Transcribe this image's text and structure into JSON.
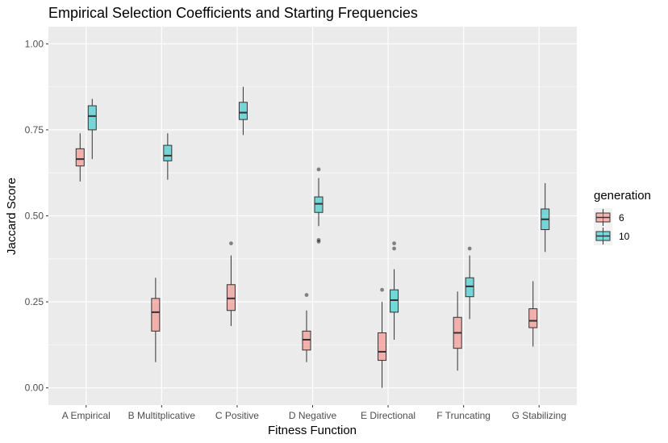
{
  "chart_data": {
    "type": "boxplot",
    "title": "Empirical Selection Coefficients and Starting Frequencies",
    "xlabel": "Fitness Function",
    "ylabel": "Jaccard Score",
    "ylim": [
      -0.05,
      1.05
    ],
    "yticks": [
      0.0,
      0.25,
      0.5,
      0.75,
      1.0
    ],
    "ytick_labels": [
      "0.00",
      "0.25",
      "0.50",
      "0.75",
      "1.00"
    ],
    "grid": true,
    "categories": [
      "A Empirical",
      "B Multitplicative",
      "C Positive",
      "D Negative",
      "E Directional",
      "F Truncating",
      "G Stabilizing"
    ],
    "legend": {
      "title": "generation",
      "position": "right",
      "entries": [
        {
          "label": "6",
          "color": "#F8766D"
        },
        {
          "label": "10",
          "color": "#00BFC4"
        }
      ]
    },
    "series": [
      {
        "name": "6",
        "color": "#F8766D",
        "boxes": [
          {
            "category": "A Empirical",
            "min": 0.6,
            "q1": 0.645,
            "median": 0.665,
            "q3": 0.695,
            "max": 0.74,
            "outliers": []
          },
          {
            "category": "B Multitplicative",
            "min": 0.075,
            "q1": 0.165,
            "median": 0.22,
            "q3": 0.26,
            "max": 0.32,
            "outliers": []
          },
          {
            "category": "C Positive",
            "min": 0.18,
            "q1": 0.225,
            "median": 0.26,
            "q3": 0.3,
            "max": 0.385,
            "outliers": [
              0.42
            ]
          },
          {
            "category": "D Negative",
            "min": 0.075,
            "q1": 0.11,
            "median": 0.14,
            "q3": 0.165,
            "max": 0.225,
            "outliers": [
              0.27
            ]
          },
          {
            "category": "E Directional",
            "min": 0.0,
            "q1": 0.08,
            "median": 0.105,
            "q3": 0.16,
            "max": 0.25,
            "outliers": [
              0.285
            ]
          },
          {
            "category": "F Truncating",
            "min": 0.05,
            "q1": 0.115,
            "median": 0.16,
            "q3": 0.205,
            "max": 0.28,
            "outliers": []
          },
          {
            "category": "G Stabilizing",
            "min": 0.12,
            "q1": 0.175,
            "median": 0.195,
            "q3": 0.23,
            "max": 0.31,
            "outliers": []
          }
        ]
      },
      {
        "name": "10",
        "color": "#00BFC4",
        "boxes": [
          {
            "category": "A Empirical",
            "min": 0.665,
            "q1": 0.75,
            "median": 0.79,
            "q3": 0.82,
            "max": 0.84,
            "outliers": []
          },
          {
            "category": "B Multitplicative",
            "min": 0.605,
            "q1": 0.66,
            "median": 0.675,
            "q3": 0.705,
            "max": 0.74,
            "outliers": []
          },
          {
            "category": "C Positive",
            "min": 0.735,
            "q1": 0.78,
            "median": 0.8,
            "q3": 0.83,
            "max": 0.875,
            "outliers": []
          },
          {
            "category": "D Negative",
            "min": 0.47,
            "q1": 0.51,
            "median": 0.535,
            "q3": 0.555,
            "max": 0.61,
            "outliers": [
              0.635,
              0.43,
              0.425
            ]
          },
          {
            "category": "E Directional",
            "min": 0.14,
            "q1": 0.22,
            "median": 0.255,
            "q3": 0.285,
            "max": 0.345,
            "outliers": [
              0.42,
              0.405
            ]
          },
          {
            "category": "F Truncating",
            "min": 0.2,
            "q1": 0.265,
            "median": 0.295,
            "q3": 0.32,
            "max": 0.385,
            "outliers": [
              0.405
            ]
          },
          {
            "category": "G Stabilizing",
            "min": 0.395,
            "q1": 0.46,
            "median": 0.49,
            "q3": 0.52,
            "max": 0.595,
            "outliers": []
          }
        ]
      }
    ]
  }
}
